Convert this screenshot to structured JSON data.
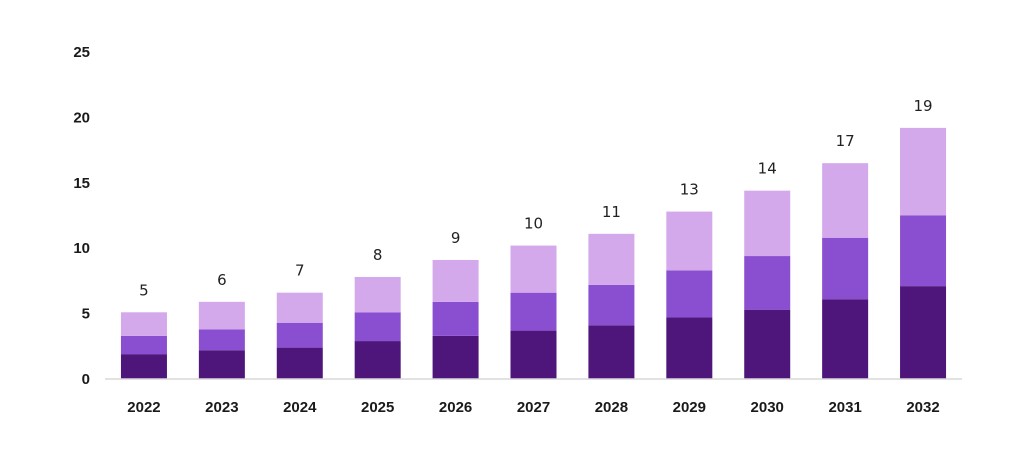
{
  "chart_data": {
    "type": "bar",
    "stacked": true,
    "categories": [
      "2022",
      "2023",
      "2024",
      "2025",
      "2026",
      "2027",
      "2028",
      "2029",
      "2030",
      "2031",
      "2032"
    ],
    "series": [
      {
        "values": [
          1.9,
          2.2,
          2.4,
          2.9,
          3.3,
          3.7,
          4.1,
          4.7,
          5.3,
          6.1,
          7.1
        ],
        "color": "#4e157a"
      },
      {
        "values": [
          1.4,
          1.6,
          1.9,
          2.2,
          2.6,
          2.9,
          3.1,
          3.6,
          4.1,
          4.7,
          5.4
        ],
        "color": "#8a4fd0"
      },
      {
        "values": [
          1.8,
          2.1,
          2.3,
          2.7,
          3.2,
          3.6,
          3.9,
          4.5,
          5.0,
          5.7,
          6.7
        ],
        "color": "#d3a9eb"
      }
    ],
    "data_labels": [
      "5",
      "6",
      "7",
      "8",
      "9",
      "10",
      "11",
      "13",
      "14",
      "17",
      "19"
    ],
    "ylim": [
      0,
      25
    ],
    "yticks": [
      "0",
      "5",
      "10",
      "15",
      "20",
      "25"
    ],
    "xlabel": "",
    "ylabel": "",
    "grid": false,
    "legend": "none"
  }
}
